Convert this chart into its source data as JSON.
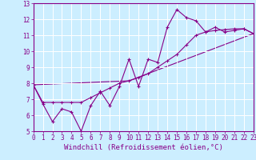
{
  "xlabel": "Windchill (Refroidissement éolien,°C)",
  "background_color": "#cceeff",
  "grid_color": "#ffffff",
  "line_color": "#880088",
  "xlabel_bg_color": "#8844aa",
  "xmin": 0,
  "xmax": 23,
  "ymin": 5,
  "ymax": 13,
  "line1_x": [
    0,
    1,
    2,
    3,
    4,
    5,
    6,
    7,
    8,
    9,
    10,
    11,
    12,
    13,
    14,
    15,
    16,
    17,
    18,
    19,
    20,
    21,
    22,
    23
  ],
  "line1_y": [
    7.9,
    6.7,
    5.6,
    6.4,
    6.2,
    5.0,
    6.6,
    7.5,
    6.6,
    7.8,
    9.5,
    7.8,
    9.5,
    9.3,
    11.5,
    12.6,
    12.1,
    11.9,
    11.2,
    11.5,
    11.2,
    11.3,
    11.4,
    11.1
  ],
  "line2_x": [
    0,
    1,
    2,
    3,
    4,
    5,
    6,
    7,
    8,
    9,
    10,
    11,
    12,
    13,
    14,
    15,
    16,
    17,
    18,
    19,
    20,
    21,
    22,
    23
  ],
  "line2_y": [
    7.9,
    6.8,
    6.8,
    6.8,
    6.8,
    6.8,
    7.1,
    7.4,
    7.7,
    8.0,
    8.15,
    8.35,
    8.6,
    9.0,
    9.4,
    9.8,
    10.4,
    11.0,
    11.2,
    11.3,
    11.35,
    11.4,
    11.4,
    11.1
  ],
  "line3_x": [
    0,
    10,
    23
  ],
  "line3_y": [
    7.9,
    8.15,
    11.1
  ],
  "font_size_tick": 5.5,
  "font_size_xlabel": 6.5
}
